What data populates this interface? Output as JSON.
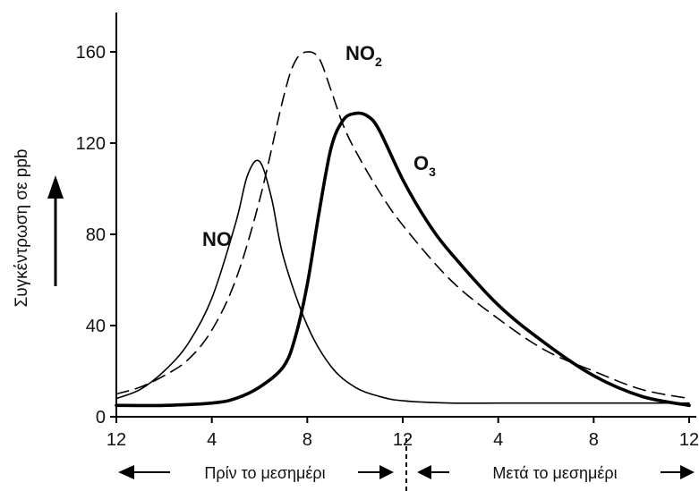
{
  "chart_data": {
    "type": "line",
    "ylabel": "Συγκέντρωση σε ppb",
    "ylim": [
      0,
      170
    ],
    "yticks": [
      "0",
      "40",
      "80",
      "120",
      "160"
    ],
    "xticks": [
      "12",
      "4",
      "8",
      "12",
      "4",
      "8",
      "12"
    ],
    "x_range_hours": [
      0,
      24
    ],
    "grid": false,
    "series": [
      {
        "name": "NO",
        "line_style": "thin solid",
        "x": [
          0,
          1,
          2,
          3,
          4,
          5,
          5.5,
          6,
          6.5,
          7,
          8,
          9,
          10,
          11,
          12,
          14,
          16,
          18,
          20,
          22,
          24
        ],
        "y": [
          8,
          12,
          20,
          32,
          52,
          85,
          106,
          112,
          96,
          70,
          40,
          22,
          13,
          9,
          7,
          6,
          6,
          6,
          6,
          6,
          6
        ]
      },
      {
        "name": "NO₂",
        "line_style": "dashed",
        "x": [
          0,
          1,
          2,
          3,
          4,
          5,
          6,
          7,
          7.5,
          8,
          8.5,
          9,
          9.5,
          10,
          11,
          12,
          14,
          16,
          18,
          20,
          22,
          24
        ],
        "y": [
          10,
          13,
          18,
          25,
          38,
          60,
          95,
          140,
          156,
          160,
          157,
          143,
          128,
          117,
          99,
          84,
          60,
          43,
          29,
          20,
          12,
          8
        ]
      },
      {
        "name": "O₃",
        "line_style": "thick solid",
        "x": [
          0,
          2,
          4,
          5,
          6,
          7,
          7.5,
          8,
          8.5,
          9,
          9.5,
          10,
          10.5,
          11,
          12,
          13,
          14,
          16,
          18,
          20,
          22,
          24
        ],
        "y": [
          5,
          5,
          6,
          8,
          13,
          22,
          35,
          58,
          90,
          118,
          130,
          133,
          132,
          126,
          104,
          86,
          72,
          49,
          32,
          18,
          9,
          5
        ]
      }
    ],
    "annotations": {
      "NO": "NO",
      "NO2_base": "NO",
      "NO2_sub": "2",
      "O3_base": "O",
      "O3_sub": "3"
    },
    "bottom_labels": {
      "before_noon": "Πρίν το μεσημέρι",
      "after_noon": "Μετά το μεσημέρι"
    }
  }
}
